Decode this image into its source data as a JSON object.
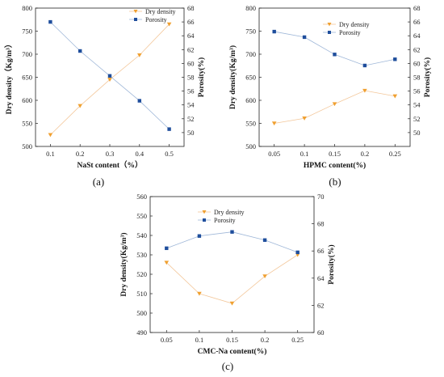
{
  "chart_data": [
    {
      "panel_label": "(a)",
      "type": "line",
      "xlabel": "NaSt content（%）",
      "ylabel_left": "Dry density（Kg/m³）",
      "ylabel_right": "Porosity(%)",
      "x": [
        "0.1",
        "0.2",
        "0.3",
        "0.4",
        "0.5"
      ],
      "ylim_left": [
        500,
        800
      ],
      "yticks_left": [
        500,
        550,
        600,
        650,
        700,
        750,
        800
      ],
      "ylim_right": [
        48,
        68
      ],
      "yticks_right": [
        50,
        52,
        54,
        56,
        58,
        60,
        62,
        64,
        66,
        68
      ],
      "legend_position": "top-right",
      "series": [
        {
          "name": "Dry density",
          "axis": "left",
          "color": "#f0a030",
          "marker": "triangle-down",
          "values": [
            525,
            588,
            645,
            698,
            765
          ]
        },
        {
          "name": "Porosity",
          "axis": "right",
          "color": "#1f4e9c",
          "marker": "square",
          "values": [
            66.0,
            61.8,
            58.2,
            54.6,
            50.5
          ]
        }
      ]
    },
    {
      "panel_label": "(b)",
      "type": "line",
      "xlabel": "HPMC content(%)",
      "ylabel_left": "Dry density(Kg/m³)",
      "ylabel_right": "Porosity(%)",
      "x": [
        "0.05",
        "0.1",
        "0.15",
        "0.2",
        "0.25"
      ],
      "ylim_left": [
        500,
        800
      ],
      "yticks_left": [
        500,
        550,
        600,
        650,
        700,
        750,
        800
      ],
      "ylim_right": [
        48,
        68
      ],
      "yticks_right": [
        50,
        52,
        54,
        56,
        58,
        60,
        62,
        64,
        66,
        68
      ],
      "legend_position": "top-right",
      "series": [
        {
          "name": "Dry density",
          "axis": "left",
          "color": "#f0a030",
          "marker": "triangle-down",
          "values": [
            550,
            561,
            592,
            621,
            609
          ]
        },
        {
          "name": "Porosity",
          "axis": "right",
          "color": "#1f4e9c",
          "marker": "square",
          "values": [
            64.6,
            63.8,
            61.3,
            59.7,
            60.6
          ]
        }
      ]
    },
    {
      "panel_label": "(c)",
      "type": "line",
      "xlabel": "CMC-Na content(%)",
      "ylabel_left": "Dry density(Kg/m³)",
      "ylabel_right": "Porosity(%)",
      "x": [
        "0.05",
        "0.1",
        "0.15",
        "0.2",
        "0.25"
      ],
      "ylim_left": [
        490,
        560
      ],
      "yticks_left": [
        490,
        500,
        510,
        520,
        530,
        540,
        550,
        560
      ],
      "ylim_right": [
        60,
        70
      ],
      "yticks_right": [
        60,
        62,
        64,
        66,
        68,
        70
      ],
      "legend_position": "top-center",
      "series": [
        {
          "name": "Dry density",
          "axis": "left",
          "color": "#f0a030",
          "marker": "triangle-down",
          "values": [
            526,
            510,
            505,
            519,
            530
          ]
        },
        {
          "name": "Porosity",
          "axis": "right",
          "color": "#1f4e9c",
          "marker": "square",
          "values": [
            66.2,
            67.1,
            67.4,
            66.8,
            65.9
          ]
        }
      ]
    }
  ]
}
